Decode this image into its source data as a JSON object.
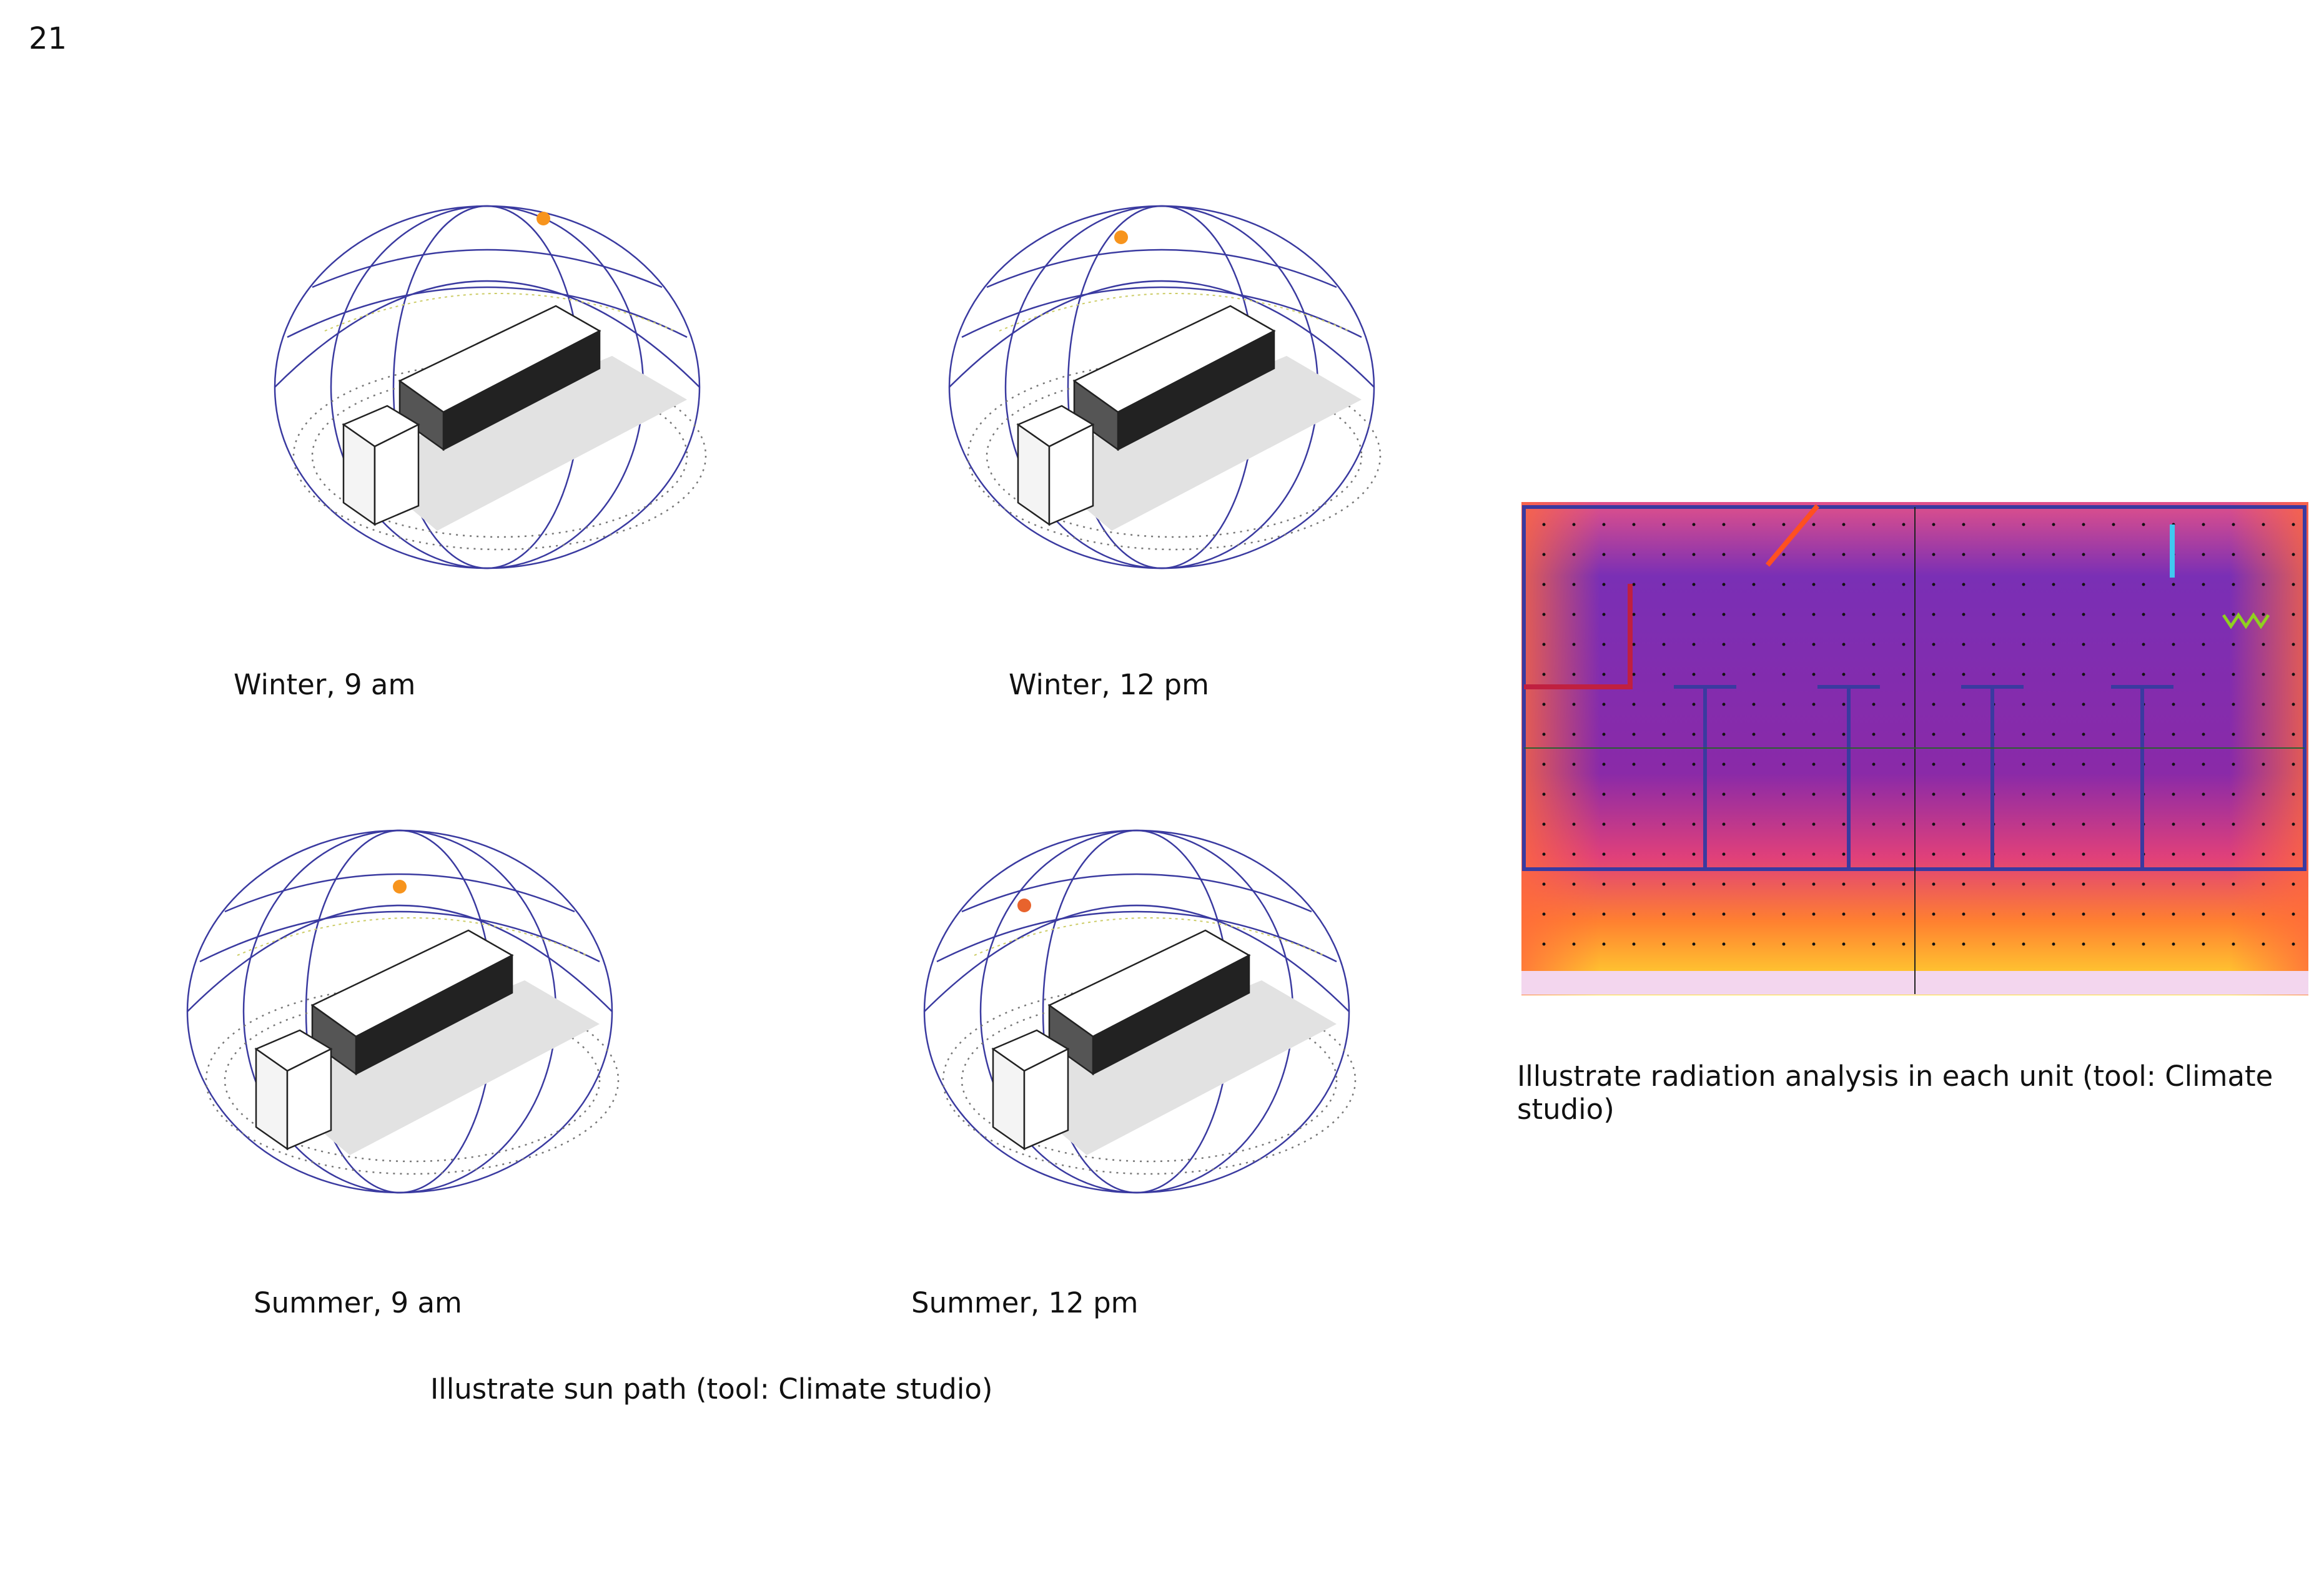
{
  "page_number": "21",
  "sun_path": {
    "images": [
      {
        "label": "Winter, 9 am"
      },
      {
        "label": "Winter, 12 pm"
      },
      {
        "label": "Summer, 9 am"
      },
      {
        "label": "Summer, 12 pm"
      }
    ],
    "caption": "Illustrate sun path (tool: Climate studio)"
  },
  "radiation": {
    "caption": "Illustrate radiation analysis in each unit (tool: Climate studio)"
  }
}
